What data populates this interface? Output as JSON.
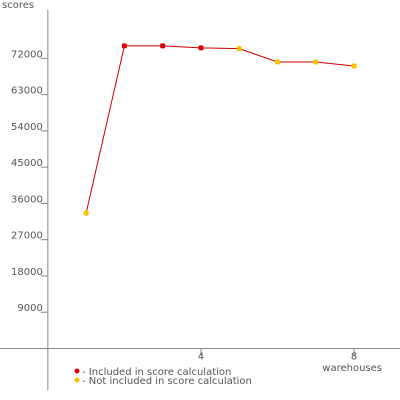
{
  "chart_data": {
    "type": "line",
    "y_label": "scores",
    "x_label": "warehouses",
    "x": [
      1,
      2,
      3,
      4,
      5,
      6,
      7,
      8
    ],
    "values": [
      33600,
      75100,
      75100,
      74600,
      74400,
      71100,
      71100,
      70100
    ],
    "included": [
      false,
      true,
      true,
      true,
      false,
      false,
      false,
      false
    ],
    "line_color": "#cc0000",
    "legend": [
      {
        "name": "- Included in score calculation",
        "color": "#dd0000"
      },
      {
        "name": "- Not included in score calculation",
        "color": "#ffc000"
      }
    ],
    "xlim": [
      -1.25,
      9.2
    ],
    "xticks": [
      4,
      8
    ],
    "ylim": [
      -10300,
      84000
    ],
    "yticks": [
      9000,
      18000,
      27000,
      36000,
      45000,
      54000,
      63000,
      72000
    ]
  }
}
